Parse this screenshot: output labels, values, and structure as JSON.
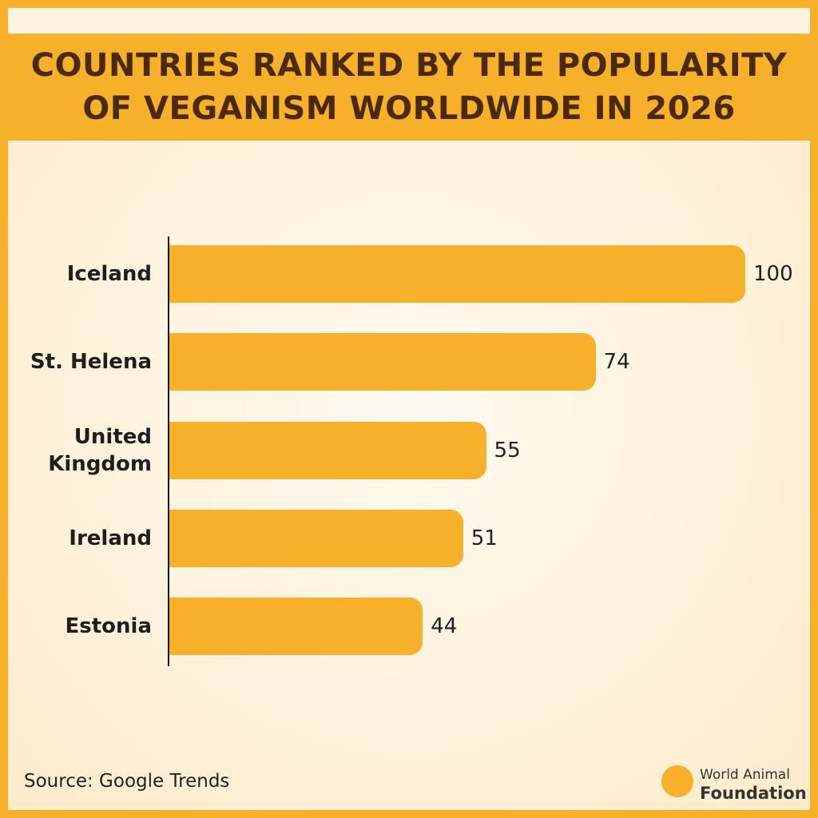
{
  "chart_data": {
    "type": "bar",
    "orientation": "horizontal",
    "title": "COUNTRIES RANKED BY THE POPULARITY OF VEGANISM WORLDWIDE IN 2026",
    "categories": [
      "Iceland",
      "St. Helena",
      "United Kingdom",
      "Ireland",
      "Estonia"
    ],
    "values": [
      100,
      74,
      55,
      51,
      44
    ],
    "color": "#f7b02a",
    "source": "Source: Google Trends",
    "brand": [
      "World Animal",
      "Foundation"
    ]
  }
}
